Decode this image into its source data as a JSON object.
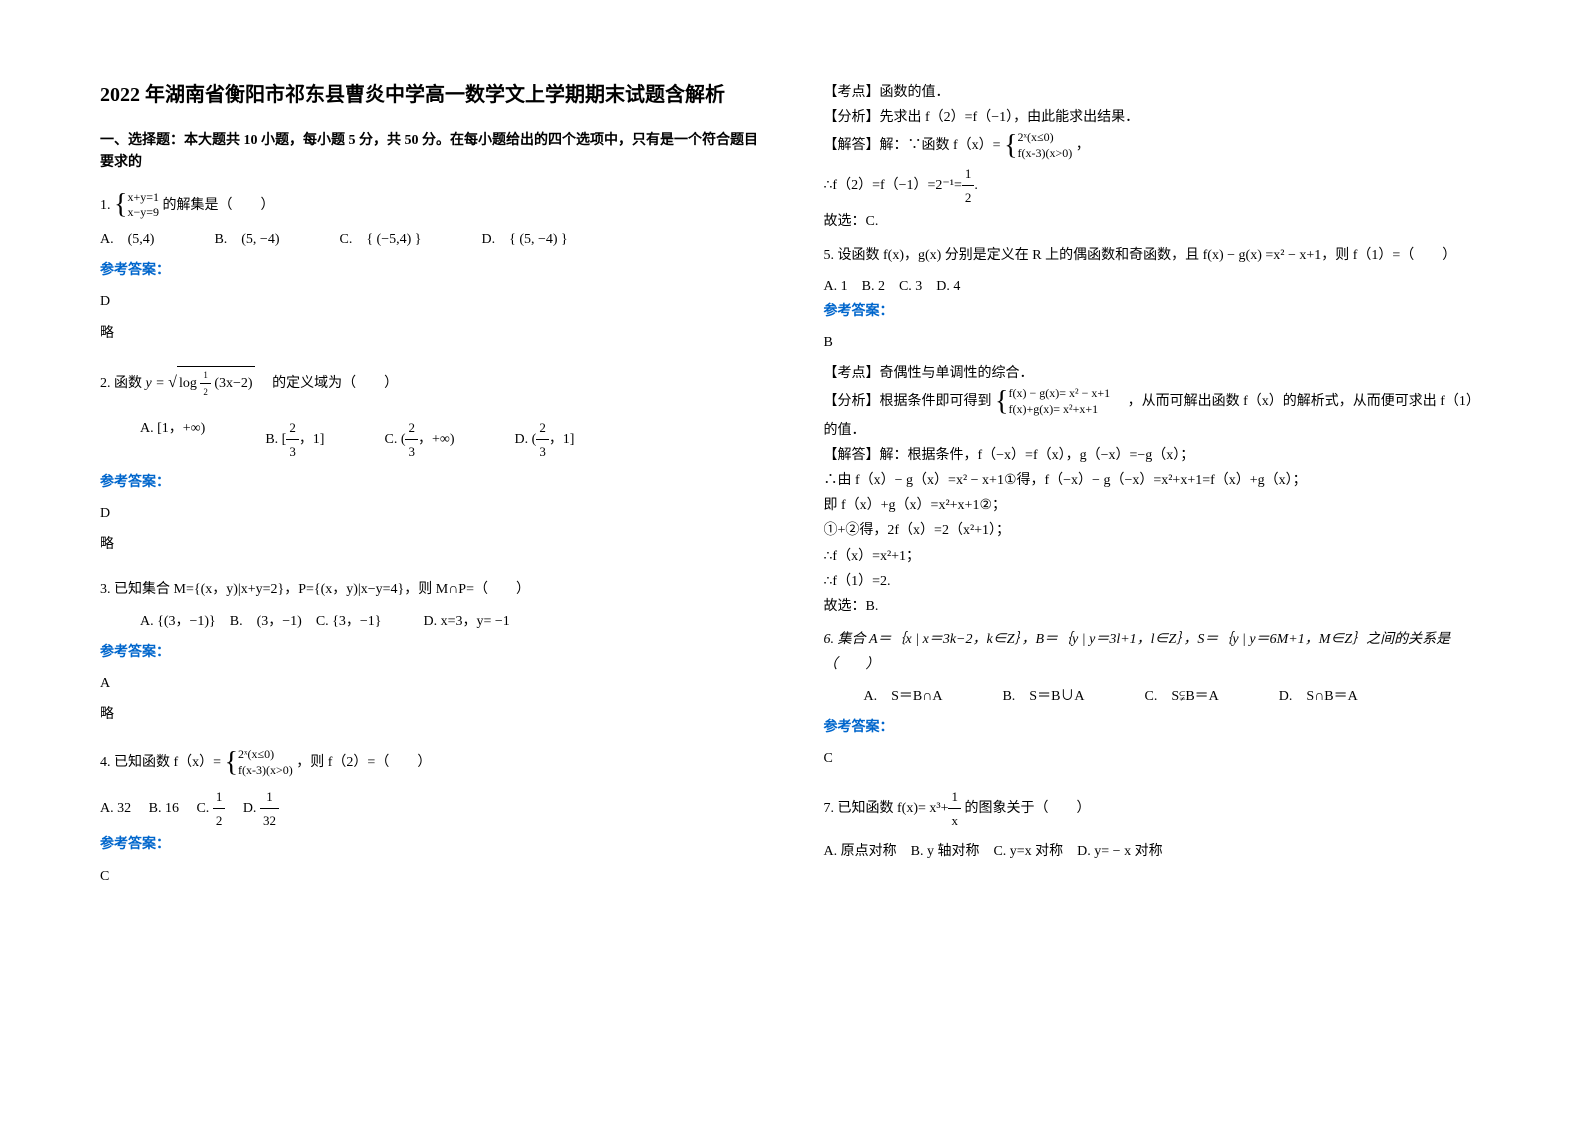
{
  "title": "2022 年湖南省衡阳市祁东县曹炎中学高一数学文上学期期末试题含解析",
  "section1": "一、选择题：本大题共 10 小题，每小题 5 分，共 50 分。在每小题给出的四个选项中，只有是一个符合题目要求的",
  "q1": {
    "prefix": "1.",
    "eq1": "x+y=1",
    "eq2": "x−y=9",
    "suffix": "的解集是（　　）",
    "optA": "A.　(5,4)",
    "optB": "B.　(5, −4)",
    "optC": "C.　{ (−5,4) }",
    "optD": "D.　{ (5, −4) }",
    "ansLabel": "参考答案：",
    "ansValue": "D",
    "ansNote": "略"
  },
  "q2": {
    "prefix": "2. 函数",
    "yeq": "y =",
    "logExpr": "log",
    "logSub": "1/2",
    "logArg": "(3x−2)",
    "suffix": "　的定义域为（　　）",
    "optA_pre": "A. [1，+∞)",
    "optB_pre": "B. [",
    "optB_suf": "，1]",
    "optC_pre": "C. (",
    "optC_suf": "，+∞)",
    "optD_pre": "D. (",
    "optD_suf": "，1]",
    "frac_num": "2",
    "frac_den": "3",
    "ansLabel": "参考答案：",
    "ansValue": "D",
    "ansNote": "略"
  },
  "q3": {
    "text": "3. 已知集合 M={(x，y)|x+y=2}，P={(x，y)|x−y=4}，则 M∩P=（　　）",
    "opts": "A. {(3，−1)}　B.　(3，−1)　C. {3，−1}　　　D. x=3，y= −1",
    "ansLabel": "参考答案：",
    "ansValue": "A",
    "ansNote": "略"
  },
  "q4": {
    "prefix": "4. 已知函数 f（x）=",
    "case1": "2ˣ(x≤0)",
    "case2": "f(x-3)(x>0)",
    "suffix": "，则 f（2）=（　　）",
    "optA": "A. 32",
    "optB": "B. 16",
    "optC_pre": "C. ",
    "optC_num": "1",
    "optC_den": "2",
    "optD_pre": "D. ",
    "optD_num": "1",
    "optD_den": "32",
    "ansLabel": "参考答案：",
    "ansValue": "C"
  },
  "r1": {
    "point": "【考点】函数的值．",
    "analysis": "【分析】先求出 f（2）=f（−1），由此能求出结果．",
    "solve_pre": "【解答】解：∵函数 f（x）=",
    "case1": "2ˣ(x≤0)",
    "case2": "f(x-3)(x>0)",
    "solve_suf": "，",
    "step1_pre": "∴f（2）=f（−1）=2⁻¹=",
    "step1_num": "1",
    "step1_den": "2",
    "step1_suf": ".",
    "conclusion": "故选：C."
  },
  "q5": {
    "text": "5. 设函数 f(x)，g(x) 分别是定义在 R 上的偶函数和奇函数，且 f(x) − g(x) =x² − x+1，则 f（1）=（　　）",
    "opts": "A. 1　B. 2　C. 3　D. 4",
    "ansLabel": "参考答案：",
    "ansValue": "B",
    "point": "【考点】奇偶性与单调性的综合．",
    "analysis_pre": "【分析】根据条件即可得到",
    "an_case1": "f(x) − g(x)= x² − x+1",
    "an_case2": "f(x)+g(x)= x²+x+1",
    "analysis_suf": "　，从而可解出函数 f（x）的解析式，从而便可求出 f（1）的值．",
    "s1": "【解答】解：根据条件，f（−x）=f（x），g（−x）=−g（x）；",
    "s2": "∴由 f（x）− g（x）=x² − x+1①得，f（−x）− g（−x）=x²+x+1=f（x）+g（x）；",
    "s3": "即 f（x）+g（x）=x²+x+1②；",
    "s4": "①+②得，2f（x）=2（x²+1）；",
    "s5": "∴f（x）=x²+1；",
    "s6": "∴f（1）=2.",
    "s7": "故选：B."
  },
  "q6": {
    "text": "6. 集合 A＝｛x | x＝3k−2，k∈Z｝，B＝｛y | y＝3l+1，l∈Z｝，S＝｛y | y＝6M+1，M∈Z｝之间的关系是（　　）",
    "optA": "A.　S＝B∩A",
    "optB": "B.　S＝B∪A",
    "optC_pre": "C.　S",
    "optC_sym": "⫋",
    "optC_suf": "B＝A",
    "optD": "D.　S∩B＝A",
    "ansLabel": "参考答案：",
    "ansValue": "C"
  },
  "q7": {
    "prefix": "7. 已知函数",
    "fx": "f(x)= x³+",
    "frac_num": "1",
    "frac_den": "x",
    "suffix": "的图象关于（　　）",
    "opts": "A. 原点对称　B. y 轴对称　C. y=x 对称　D. y= − x 对称"
  }
}
